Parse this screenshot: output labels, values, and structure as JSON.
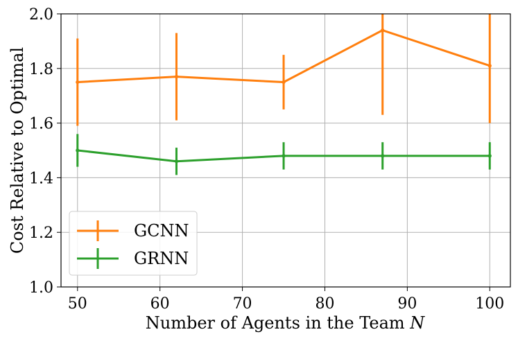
{
  "chart_data": {
    "type": "line",
    "xlabel": "Number of Agents in the Team N",
    "xlabel_main": "Number of Agents in the Team ",
    "xlabel_var": "N",
    "ylabel": "Cost Relative to Optimal",
    "xlim": [
      48,
      102.5
    ],
    "ylim": [
      1.0,
      2.0
    ],
    "xticks": [
      50,
      60,
      70,
      80,
      90,
      100
    ],
    "xtick_labels": [
      "50",
      "60",
      "70",
      "80",
      "90",
      "100"
    ],
    "yticks": [
      1.0,
      1.2,
      1.4,
      1.6,
      1.8,
      2.0
    ],
    "ytick_labels": [
      "1.0",
      "1.2",
      "1.4",
      "1.6",
      "1.8",
      "2.0"
    ],
    "grid": true,
    "legend_position": "bottom-left",
    "series": [
      {
        "name": "GCNN",
        "color": "#ff7f0e",
        "x": [
          50,
          62,
          75,
          87,
          100
        ],
        "y": [
          1.75,
          1.77,
          1.75,
          1.94,
          1.81
        ],
        "err_low": [
          1.59,
          1.61,
          1.65,
          1.63,
          1.6
        ],
        "err_high": [
          1.91,
          1.93,
          1.85,
          2.0,
          2.0
        ]
      },
      {
        "name": "GRNN",
        "color": "#2ca02c",
        "x": [
          50,
          62,
          75,
          87,
          100
        ],
        "y": [
          1.5,
          1.46,
          1.48,
          1.48,
          1.48
        ],
        "err_low": [
          1.44,
          1.41,
          1.43,
          1.43,
          1.43
        ],
        "err_high": [
          1.56,
          1.51,
          1.53,
          1.53,
          1.53
        ]
      }
    ]
  }
}
